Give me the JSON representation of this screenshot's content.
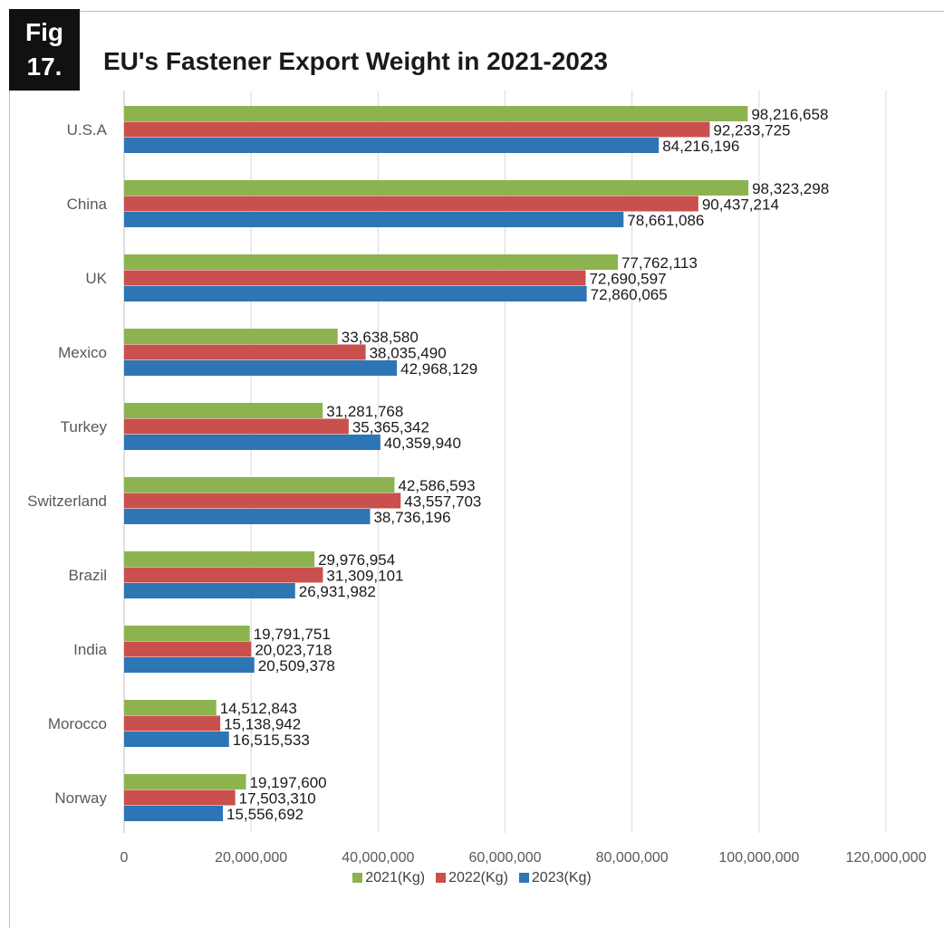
{
  "badge": {
    "line1": "Fig",
    "line2": "17."
  },
  "chart_data": {
    "type": "bar",
    "orientation": "horizontal",
    "title": "EU's Fastener Export Weight in 2021-2023",
    "categories": [
      "U.S.A",
      "China",
      "UK",
      "Mexico",
      "Turkey",
      "Switzerland",
      "Brazil",
      "India",
      "Morocco",
      "Norway"
    ],
    "series": [
      {
        "name": "2021(Kg)",
        "color": "#8db350",
        "values": [
          98216658,
          98323298,
          77762113,
          33638580,
          31281768,
          42586593,
          29976954,
          19791751,
          14512843,
          19197600
        ],
        "labels": [
          "98,216,658",
          "98,323,298",
          "77,762,113",
          "33,638,580",
          "31,281,768",
          "42,586,593",
          "29,976,954",
          "19,791,751",
          "14,512,843",
          "19,197,600"
        ]
      },
      {
        "name": "2022(Kg)",
        "color": "#c9504c",
        "values": [
          92233725,
          90437214,
          72690597,
          38035490,
          35365342,
          43557703,
          31309101,
          20023718,
          15138942,
          17503310
        ],
        "labels": [
          "92,233,725",
          "90,437,214",
          "72,690,597",
          "38,035,490",
          "35,365,342",
          "43,557,703",
          "31,309,101",
          "20,023,718",
          "15,138,942",
          "17,503,310"
        ]
      },
      {
        "name": "2023(Kg)",
        "color": "#2e75b6",
        "values": [
          84216196,
          78661086,
          72860065,
          42968129,
          40359940,
          38736196,
          26931982,
          20509378,
          16515533,
          15556692
        ],
        "labels": [
          "84,216,196",
          "78,661,086",
          "72,860,065",
          "42,968,129",
          "40,359,940",
          "38,736,196",
          "26,931,982",
          "20,509,378",
          "16,515,533",
          "15,556,692"
        ]
      }
    ],
    "xlim": [
      0,
      120000000
    ],
    "xticks": [
      0,
      20000000,
      40000000,
      60000000,
      80000000,
      100000000,
      120000000
    ],
    "xtick_labels": [
      "0",
      "20,000,000",
      "40,000,000",
      "60,000,000",
      "80,000,000",
      "100,000,000",
      "120,000,000"
    ],
    "grid": "vertical",
    "legend_position": "bottom"
  }
}
